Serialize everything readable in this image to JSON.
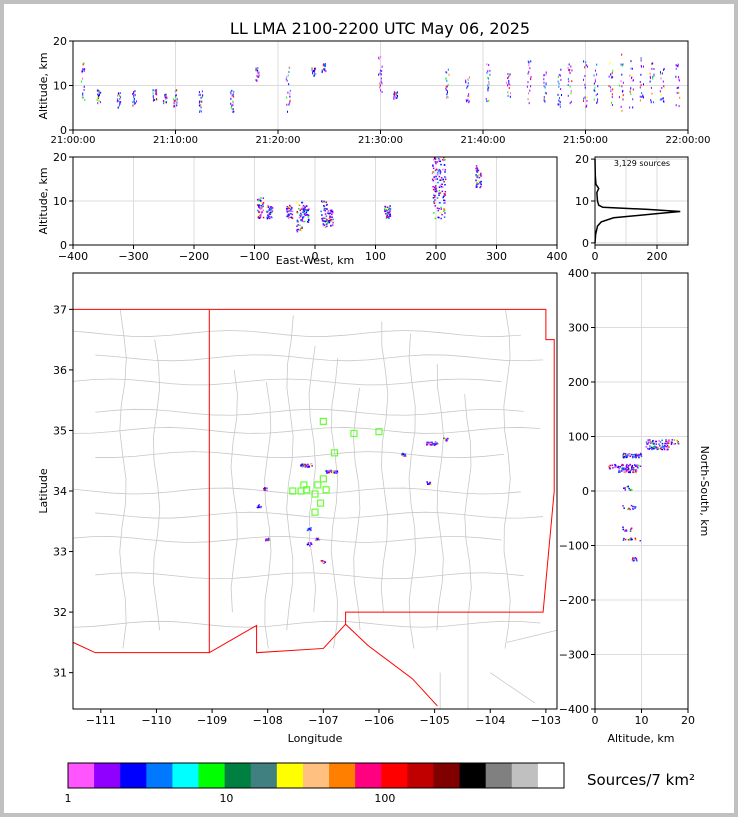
{
  "chart_data": [
    {
      "type": "scatter",
      "title": "LL LMA 2100-2200 UTC May 06, 2025",
      "xlabel": "",
      "ylabel": "Altitude, km",
      "xlim": [
        "21:00:00",
        "22:00:00"
      ],
      "ylim": [
        0,
        20
      ],
      "x_ticks": [
        "21:00:00",
        "21:10:00",
        "21:20:00",
        "21:30:00",
        "21:40:00",
        "21:50:00",
        "22:00:00"
      ],
      "y_ticks": [
        0,
        10,
        20
      ],
      "grid": true,
      "source_groups": [
        {
          "t_min": 1.0,
          "alt": [
            5,
            15
          ]
        },
        {
          "t_min": 2.5,
          "alt": [
            6,
            9
          ]
        },
        {
          "t_min": 4.5,
          "alt": [
            5,
            9
          ]
        },
        {
          "t_min": 6.0,
          "alt": [
            5,
            9
          ]
        },
        {
          "t_min": 8.0,
          "alt": [
            6,
            9
          ]
        },
        {
          "t_min": 9.0,
          "alt": [
            6,
            8
          ]
        },
        {
          "t_min": 10.0,
          "alt": [
            5,
            9
          ]
        },
        {
          "t_min": 12.5,
          "alt": [
            4,
            9
          ]
        },
        {
          "t_min": 15.5,
          "alt": [
            4,
            9
          ]
        },
        {
          "t_min": 18.0,
          "alt": [
            11,
            14
          ]
        },
        {
          "t_min": 21.0,
          "alt": [
            4,
            14
          ]
        },
        {
          "t_min": 23.5,
          "alt": [
            12,
            14
          ]
        },
        {
          "t_min": 24.5,
          "alt": [
            13,
            15
          ]
        },
        {
          "t_min": 30.0,
          "alt": [
            8,
            17
          ]
        },
        {
          "t_min": 31.5,
          "alt": [
            7,
            9
          ]
        },
        {
          "t_min": 36.5,
          "alt": [
            7,
            14
          ]
        },
        {
          "t_min": 38.5,
          "alt": [
            6,
            12
          ]
        },
        {
          "t_min": 40.5,
          "alt": [
            6,
            15
          ]
        },
        {
          "t_min": 42.5,
          "alt": [
            7,
            13
          ]
        },
        {
          "t_min": 44.5,
          "alt": [
            6,
            16
          ]
        },
        {
          "t_min": 46.0,
          "alt": [
            6,
            14
          ]
        },
        {
          "t_min": 47.5,
          "alt": [
            5,
            14
          ]
        },
        {
          "t_min": 48.5,
          "alt": [
            6,
            15
          ]
        },
        {
          "t_min": 50.0,
          "alt": [
            5,
            16
          ]
        },
        {
          "t_min": 51.0,
          "alt": [
            5,
            15
          ]
        },
        {
          "t_min": 52.5,
          "alt": [
            5,
            15
          ]
        },
        {
          "t_min": 53.5,
          "alt": [
            4,
            17
          ]
        },
        {
          "t_min": 54.5,
          "alt": [
            5,
            16
          ]
        },
        {
          "t_min": 55.5,
          "alt": [
            6,
            17
          ]
        },
        {
          "t_min": 56.5,
          "alt": [
            5,
            15
          ]
        },
        {
          "t_min": 57.5,
          "alt": [
            6,
            14
          ]
        },
        {
          "t_min": 59.0,
          "alt": [
            4,
            15
          ]
        }
      ]
    },
    {
      "type": "scatter",
      "title": "",
      "xlabel": "East-West, km",
      "ylabel": "Altitude, km",
      "xlim": [
        -400,
        400
      ],
      "ylim": [
        0,
        20
      ],
      "x_ticks": [
        -400,
        -300,
        -200,
        -100,
        0,
        100,
        200,
        300,
        400
      ],
      "y_ticks": [
        0,
        10,
        20
      ],
      "grid": true,
      "clusters": [
        {
          "x": -90,
          "alt": [
            6,
            11
          ]
        },
        {
          "x": -75,
          "alt": [
            6,
            9
          ]
        },
        {
          "x": -42,
          "alt": [
            6,
            9
          ]
        },
        {
          "x": -25,
          "alt": [
            3,
            10
          ]
        },
        {
          "x": -15,
          "alt": [
            5,
            9
          ]
        },
        {
          "x": 15,
          "alt": [
            4,
            10
          ]
        },
        {
          "x": 25,
          "alt": [
            4,
            8
          ]
        },
        {
          "x": 120,
          "alt": [
            6,
            9
          ]
        },
        {
          "x": 205,
          "alt": [
            6,
            20
          ]
        },
        {
          "x": 270,
          "alt": [
            13,
            18
          ]
        }
      ]
    },
    {
      "type": "line",
      "title": "3,129 sources",
      "xlabel": "",
      "ylabel": "",
      "xlim": [
        0,
        300
      ],
      "ylim": [
        0,
        20
      ],
      "x_ticks": [
        0,
        200
      ],
      "y_ticks": [
        0,
        10,
        20
      ],
      "grid": true,
      "altitude_histogram": {
        "alt": [
          0,
          2,
          4,
          5,
          6,
          7,
          7.5,
          8,
          8.5,
          9,
          10,
          12,
          13,
          14,
          16,
          20
        ],
        "count": [
          0,
          2,
          8,
          20,
          60,
          200,
          275,
          170,
          25,
          12,
          8,
          6,
          12,
          3,
          1,
          0
        ]
      }
    },
    {
      "type": "scatter",
      "title": "",
      "xlabel": "Longitude",
      "ylabel": "Latitude",
      "xlim": [
        -111.5,
        -102.8
      ],
      "ylim": [
        30.4,
        37.6
      ],
      "x_ticks": [
        -111,
        -110,
        -109,
        -108,
        -107,
        -106,
        -105,
        -104,
        -103
      ],
      "y_ticks": [
        31,
        32,
        33,
        34,
        35,
        36,
        37
      ],
      "stations": [
        [
          -107.0,
          35.15
        ],
        [
          -106.45,
          34.95
        ],
        [
          -106.0,
          34.98
        ],
        [
          -106.8,
          34.63
        ],
        [
          -107.0,
          34.2
        ],
        [
          -107.1,
          34.1
        ],
        [
          -107.35,
          34.1
        ],
        [
          -107.4,
          34.0
        ],
        [
          -107.55,
          34.0
        ],
        [
          -107.3,
          34.02
        ],
        [
          -107.15,
          33.95
        ],
        [
          -106.95,
          34.02
        ],
        [
          -107.05,
          33.8
        ],
        [
          -107.15,
          33.65
        ]
      ],
      "clusters": [
        {
          "lon": -107.3,
          "lat": 34.42
        },
        {
          "lon": -106.85,
          "lat": 34.32
        },
        {
          "lon": -105.05,
          "lat": 34.78
        },
        {
          "lon": -105.55,
          "lat": 34.6
        },
        {
          "lon": -104.8,
          "lat": 34.85
        },
        {
          "lon": -107.25,
          "lat": 33.12
        },
        {
          "lon": -107.1,
          "lat": 33.2
        },
        {
          "lon": -108.05,
          "lat": 34.03
        },
        {
          "lon": -108.15,
          "lat": 33.75
        },
        {
          "lon": -107.25,
          "lat": 33.37
        },
        {
          "lon": -108.0,
          "lat": 33.2
        },
        {
          "lon": -107.0,
          "lat": 32.83
        },
        {
          "lon": -105.1,
          "lat": 34.13
        }
      ]
    },
    {
      "type": "scatter",
      "title": "",
      "xlabel": "Altitude, km",
      "ylabel": "North-South, km",
      "xlim": [
        0,
        20
      ],
      "ylim": [
        -400,
        400
      ],
      "x_ticks": [
        0,
        10,
        20
      ],
      "y_ticks": [
        -400,
        -300,
        -200,
        -100,
        0,
        100,
        200,
        300,
        400
      ],
      "grid": true,
      "clusters": [
        {
          "ns": 90,
          "alt": [
            11,
            18
          ]
        },
        {
          "ns": 80,
          "alt": [
            11,
            16
          ]
        },
        {
          "ns": 65,
          "alt": [
            6,
            10
          ]
        },
        {
          "ns": 45,
          "alt": [
            3,
            10
          ]
        },
        {
          "ns": 38,
          "alt": [
            5,
            9
          ]
        },
        {
          "ns": 5,
          "alt": [
            6,
            8
          ]
        },
        {
          "ns": -30,
          "alt": [
            6,
            9
          ]
        },
        {
          "ns": -70,
          "alt": [
            6,
            8
          ]
        },
        {
          "ns": -90,
          "alt": [
            6,
            10
          ]
        },
        {
          "ns": -125,
          "alt": [
            8,
            9
          ]
        }
      ]
    }
  ],
  "colorbar": {
    "label": "Sources/7 km²",
    "tick_labels": [
      "1",
      "10",
      "100"
    ],
    "colors": [
      "#ff55ff",
      "#9000ff",
      "#0000ff",
      "#0078ff",
      "#00ffff",
      "#00ff00",
      "#008040",
      "#408080",
      "#ffff00",
      "#ffc080",
      "#ff8000",
      "#ff0080",
      "#ff0000",
      "#c00000",
      "#800000",
      "#000000",
      "#808080",
      "#c0c0c0",
      "#ffffff"
    ]
  },
  "colors": {
    "state_border": "#ff0000",
    "county_border": "#c8c8c8",
    "station_marker": "#66ff33",
    "grid": "#dcdcdc"
  }
}
